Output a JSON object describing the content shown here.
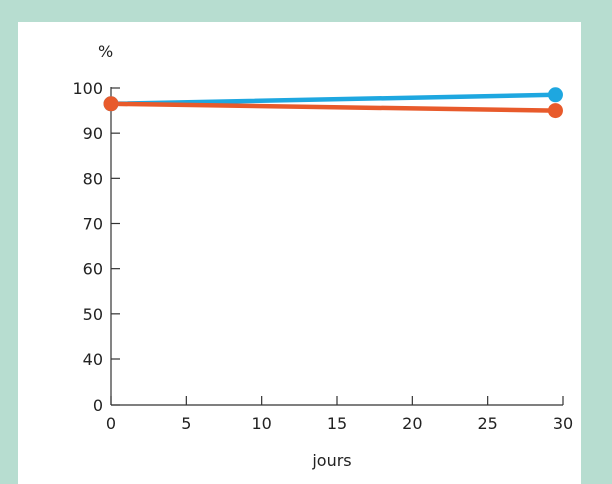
{
  "chart_data": {
    "type": "line",
    "xlabel": "jours",
    "ylabel": "%",
    "x_ticks": [
      0,
      5,
      10,
      15,
      20,
      25,
      30
    ],
    "y_ticks": [
      0,
      40,
      50,
      60,
      70,
      80,
      90,
      100
    ],
    "xlim": [
      0,
      30
    ],
    "y_axis_break": true,
    "grid": false,
    "series": [
      {
        "color": "#1ea7e0",
        "points": [
          [
            0,
            96.5
          ],
          [
            29.5,
            98.5
          ]
        ]
      },
      {
        "color": "#e85a2b",
        "points": [
          [
            0,
            96.5
          ],
          [
            29.5,
            95
          ]
        ]
      }
    ]
  }
}
